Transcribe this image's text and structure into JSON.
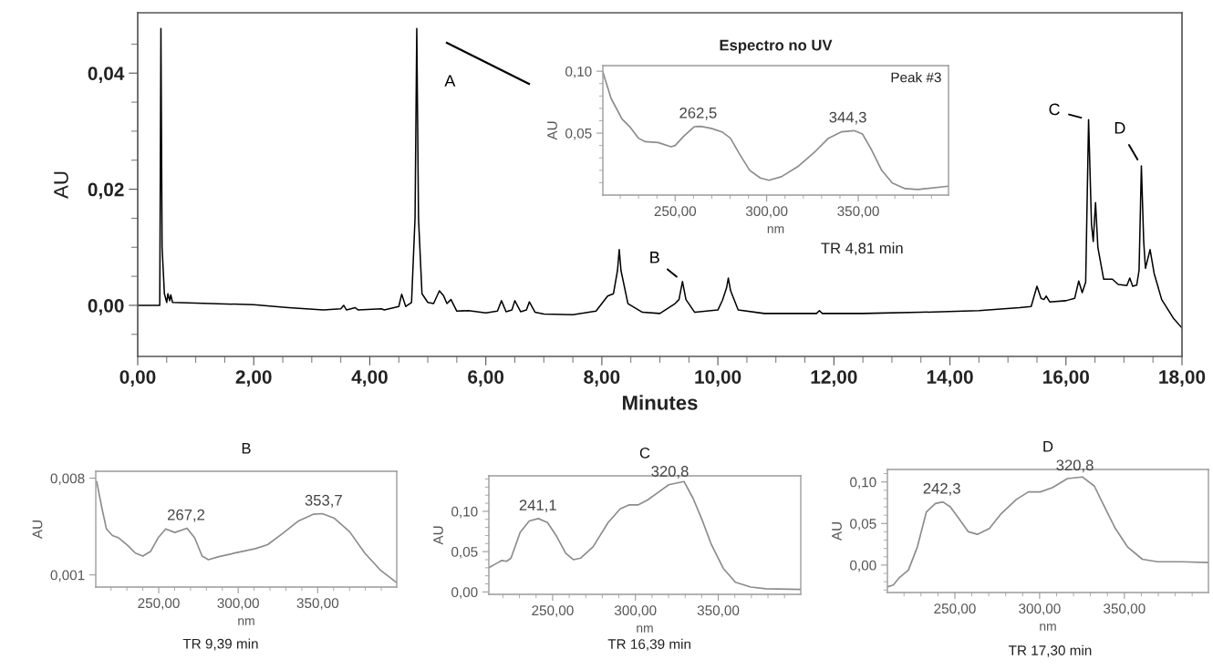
{
  "chart_data": [
    {
      "type": "line",
      "xlabel": "Minutes",
      "ylabel": "AU",
      "xlim": [
        0,
        18
      ],
      "ylim": [
        -0.0088,
        0.0504
      ],
      "xticks": [
        {
          "value": 0,
          "label": "0,00"
        },
        {
          "value": 0.5,
          "label": null
        },
        {
          "value": 1,
          "label": null
        },
        {
          "value": 1.5,
          "label": null
        },
        {
          "value": 2,
          "label": "2,00"
        },
        {
          "value": 2.5,
          "label": null
        },
        {
          "value": 3,
          "label": null
        },
        {
          "value": 3.5,
          "label": null
        },
        {
          "value": 4,
          "label": "4,00"
        },
        {
          "value": 4.5,
          "label": null
        },
        {
          "value": 5,
          "label": null
        },
        {
          "value": 5.5,
          "label": null
        },
        {
          "value": 6,
          "label": "6,00"
        },
        {
          "value": 6.5,
          "label": null
        },
        {
          "value": 7,
          "label": null
        },
        {
          "value": 7.5,
          "label": null
        },
        {
          "value": 8,
          "label": "8,00"
        },
        {
          "value": 8.5,
          "label": null
        },
        {
          "value": 9,
          "label": null
        },
        {
          "value": 9.5,
          "label": null
        },
        {
          "value": 10,
          "label": "10,00"
        },
        {
          "value": 10.5,
          "label": null
        },
        {
          "value": 11,
          "label": null
        },
        {
          "value": 11.5,
          "label": null
        },
        {
          "value": 12,
          "label": "12,00"
        },
        {
          "value": 12.5,
          "label": null
        },
        {
          "value": 13,
          "label": null
        },
        {
          "value": 13.5,
          "label": null
        },
        {
          "value": 14,
          "label": "14,00"
        },
        {
          "value": 14.5,
          "label": null
        },
        {
          "value": 15,
          "label": null
        },
        {
          "value": 15.5,
          "label": null
        },
        {
          "value": 16,
          "label": "16,00"
        },
        {
          "value": 16.5,
          "label": null
        },
        {
          "value": 17,
          "label": null
        },
        {
          "value": 17.5,
          "label": null
        },
        {
          "value": 18,
          "label": "18,00"
        }
      ],
      "yticks": [
        {
          "value": -0.005,
          "label": null
        },
        {
          "value": 0,
          "label": "0,00"
        },
        {
          "value": 0.005,
          "label": null
        },
        {
          "value": 0.01,
          "label": null
        },
        {
          "value": 0.015,
          "label": null
        },
        {
          "value": 0.02,
          "label": "0,02"
        },
        {
          "value": 0.025,
          "label": null
        },
        {
          "value": 0.03,
          "label": null
        },
        {
          "value": 0.035,
          "label": null
        },
        {
          "value": 0.04,
          "label": "0,04"
        },
        {
          "value": 0.045,
          "label": null
        }
      ],
      "series": [
        {
          "color": "#000000",
          "x": [
            0,
            0.38,
            0.4,
            0.42,
            0.46,
            0.5,
            0.52,
            0.55,
            0.57,
            0.6,
            1.0,
            2.0,
            2.6,
            3.2,
            3.5,
            3.55,
            3.6,
            3.75,
            3.8,
            4.2,
            4.25,
            4.5,
            4.55,
            4.62,
            4.72,
            4.78,
            4.81,
            4.84,
            4.9,
            5.0,
            5.1,
            5.2,
            5.27,
            5.33,
            5.4,
            5.5,
            5.7,
            6.0,
            6.2,
            6.27,
            6.35,
            6.45,
            6.5,
            6.6,
            6.7,
            6.75,
            6.85,
            7.0,
            7.5,
            7.9,
            8.1,
            8.2,
            8.27,
            8.3,
            8.33,
            8.45,
            8.7,
            9.0,
            9.25,
            9.33,
            9.39,
            9.45,
            9.6,
            10.0,
            10.08,
            10.15,
            10.18,
            10.22,
            10.35,
            10.8,
            11.7,
            11.75,
            11.8,
            12.5,
            13.5,
            14.5,
            15.2,
            15.4,
            15.5,
            15.57,
            15.62,
            15.66,
            15.72,
            16.0,
            16.15,
            16.22,
            16.28,
            16.34,
            16.39,
            16.44,
            16.47,
            16.51,
            16.55,
            16.65,
            16.8,
            16.9,
            17.05,
            17.1,
            17.15,
            17.22,
            17.26,
            17.3,
            17.34,
            17.37,
            17.45,
            17.52,
            17.65,
            17.85,
            18.0
          ],
          "values": [
            0.0,
            0.0,
            0.0477,
            0.01,
            0.002,
            0.0005,
            0.002,
            0.0008,
            0.0018,
            0.0005,
            0.0004,
            0.0001,
            -0.0004,
            -0.0008,
            -0.0006,
            0.0,
            -0.0008,
            -0.0004,
            -0.0008,
            -0.0006,
            -0.0008,
            -0.0002,
            0.0019,
            -0.0002,
            0.0005,
            0.015,
            0.0477,
            0.015,
            0.002,
            0.0005,
            0.0003,
            0.0025,
            0.0017,
            0.0003,
            0.001,
            -0.001,
            -0.0009,
            -0.0013,
            -0.001,
            0.0008,
            -0.0011,
            -0.0008,
            0.0008,
            -0.0011,
            -0.0008,
            0.0006,
            -0.0012,
            -0.0015,
            -0.0016,
            -0.001,
            0.0016,
            0.002,
            0.006,
            0.0096,
            0.006,
            0.0003,
            -0.0012,
            -0.0014,
            0.0002,
            0.001,
            0.0041,
            0.001,
            -0.0012,
            -0.0008,
            0.0009,
            0.003,
            0.0047,
            0.0025,
            -0.0008,
            -0.0014,
            -0.0014,
            -0.0009,
            -0.0014,
            -0.0014,
            -0.0012,
            -0.0009,
            -0.0004,
            -0.0002,
            0.0033,
            0.0012,
            0.001,
            0.0016,
            0.0006,
            0.0008,
            0.0012,
            0.0042,
            0.0022,
            0.004,
            0.032,
            0.014,
            0.011,
            0.0177,
            0.01,
            0.0045,
            0.0045,
            0.0036,
            0.0034,
            0.0047,
            0.0033,
            0.0035,
            0.006,
            0.024,
            0.011,
            0.0064,
            0.0096,
            0.0055,
            0.001,
            -0.0022,
            -0.0039
          ]
        }
      ],
      "annotations": [
        "A",
        {
          "text": "B",
          "x": 9.39,
          "y": 0.0041
        },
        {
          "text": "C",
          "x": 16.39,
          "y": 0.032
        },
        {
          "text": "D",
          "x": 17.3,
          "y": 0.024
        }
      ]
    },
    {
      "type": "line",
      "title": "Espectro no UV",
      "xlabel": "nm",
      "ylabel": "AU",
      "xlim": [
        210.5,
        399.3
      ],
      "ylim": [
        0,
        0.1045
      ],
      "xticks": [
        {
          "value": 220,
          "label": null
        },
        {
          "value": 230,
          "label": null
        },
        {
          "value": 240,
          "label": null
        },
        {
          "value": 250,
          "label": "250,00"
        },
        {
          "value": 260,
          "label": null
        },
        {
          "value": 270,
          "label": null
        },
        {
          "value": 280,
          "label": null
        },
        {
          "value": 290,
          "label": null
        },
        {
          "value": 300,
          "label": "300,00"
        },
        {
          "value": 310,
          "label": null
        },
        {
          "value": 320,
          "label": null
        },
        {
          "value": 330,
          "label": null
        },
        {
          "value": 340,
          "label": null
        },
        {
          "value": 350,
          "label": "350,00"
        },
        {
          "value": 360,
          "label": null
        },
        {
          "value": 370,
          "label": null
        },
        {
          "value": 380,
          "label": null
        },
        {
          "value": 390,
          "label": null
        }
      ],
      "yticks": [
        {
          "value": 0.01,
          "label": null
        },
        {
          "value": 0.02,
          "label": null
        },
        {
          "value": 0.03,
          "label": null
        },
        {
          "value": 0.04,
          "label": null
        },
        {
          "value": 0.05,
          "label": "0,05"
        },
        {
          "value": 0.06,
          "label": null
        },
        {
          "value": 0.07,
          "label": null
        },
        {
          "value": 0.08,
          "label": null
        },
        {
          "value": 0.09,
          "label": null
        },
        {
          "value": 0.1,
          "label": "0,10"
        }
      ],
      "series": [
        {
          "color": "#8c8c8c",
          "x": [
            210.5,
            215,
            221,
            225.6,
            230,
            233.7,
            240.7,
            247.7,
            250,
            254.7,
            260.5,
            264,
            269.8,
            275.6,
            280.2,
            284.9,
            290.7,
            296.5,
            301.2,
            308,
            317.4,
            326.7,
            333.7,
            340.7,
            347.7,
            352.3,
            357,
            362.8,
            368.6,
            375.6,
            382.6,
            399.3
          ],
          "values": [
            0.0993,
            0.078,
            0.0614,
            0.0545,
            0.0459,
            0.0431,
            0.0424,
            0.039,
            0.04,
            0.0476,
            0.0552,
            0.0555,
            0.0538,
            0.051,
            0.0459,
            0.0338,
            0.02,
            0.0138,
            0.012,
            0.0148,
            0.0234,
            0.0355,
            0.0459,
            0.051,
            0.052,
            0.0493,
            0.0372,
            0.02,
            0.0097,
            0.0052,
            0.0045,
            0.0072
          ]
        }
      ],
      "annotations": [
        {
          "text": "262,5",
          "x": 262.5,
          "y": 0.0555
        },
        {
          "text": "344,3",
          "x": 344.3,
          "y": 0.052
        },
        "Peak #3",
        "TR 4,81 min"
      ]
    },
    {
      "type": "line",
      "title": "B",
      "xlabel": "nm",
      "ylabel": "AU",
      "xlim": [
        210.4,
        399.7
      ],
      "ylim": [
        0.00012,
        0.0085
      ],
      "xticks": [
        {
          "value": 220,
          "label": null
        },
        {
          "value": 230,
          "label": null
        },
        {
          "value": 240,
          "label": null
        },
        {
          "value": 250,
          "label": "250,00"
        },
        {
          "value": 260,
          "label": null
        },
        {
          "value": 270,
          "label": null
        },
        {
          "value": 280,
          "label": null
        },
        {
          "value": 290,
          "label": null
        },
        {
          "value": 300,
          "label": "300,00"
        },
        {
          "value": 310,
          "label": null
        },
        {
          "value": 320,
          "label": null
        },
        {
          "value": 330,
          "label": null
        },
        {
          "value": 340,
          "label": null
        },
        {
          "value": 350,
          "label": "350,00"
        },
        {
          "value": 360,
          "label": null
        },
        {
          "value": 370,
          "label": null
        },
        {
          "value": 380,
          "label": null
        },
        {
          "value": 390,
          "label": null
        }
      ],
      "yticks": [
        {
          "value": 0.001,
          "label": "0,001"
        },
        {
          "value": 0.008,
          "label": "0,008"
        }
      ],
      "series": [
        {
          "color": "#8c8c8c",
          "x": [
            211,
            214.2,
            217.1,
            220.9,
            224.8,
            230.5,
            235.3,
            240,
            244.8,
            249.6,
            254.4,
            260.1,
            267.8,
            272.6,
            277.3,
            281.2,
            287.9,
            299.3,
            310.8,
            318.5,
            328,
            337.6,
            347.1,
            352.9,
            360.5,
            370.1,
            379.6,
            389.2,
            399.7
          ],
          "values": [
            0.00774,
            0.00587,
            0.00433,
            0.00385,
            0.00368,
            0.00313,
            0.00258,
            0.00236,
            0.00269,
            0.00368,
            0.00433,
            0.00407,
            0.00438,
            0.00368,
            0.00236,
            0.0021,
            0.00232,
            0.00262,
            0.0029,
            0.00319,
            0.004,
            0.00488,
            0.00539,
            0.00543,
            0.0051,
            0.00412,
            0.00258,
            0.00137,
            0.00043
          ]
        }
      ],
      "annotations": [
        {
          "text": "267,2",
          "x": 267.2,
          "y": 0.00438
        },
        {
          "text": "353,7",
          "x": 353.7,
          "y": 0.00543
        },
        "TR 9,39 min"
      ]
    },
    {
      "type": "line",
      "title": "C",
      "xlabel": "nm",
      "ylabel": "AU",
      "xlim": [
        211.5,
        399.8
      ],
      "ylim": [
        -0.003,
        0.144
      ],
      "xticks": [
        {
          "value": 220,
          "label": null
        },
        {
          "value": 230,
          "label": null
        },
        {
          "value": 240,
          "label": null
        },
        {
          "value": 250,
          "label": "250,00"
        },
        {
          "value": 260,
          "label": null
        },
        {
          "value": 270,
          "label": null
        },
        {
          "value": 280,
          "label": null
        },
        {
          "value": 290,
          "label": null
        },
        {
          "value": 300,
          "label": "300,00"
        },
        {
          "value": 310,
          "label": null
        },
        {
          "value": 320,
          "label": null
        },
        {
          "value": 330,
          "label": null
        },
        {
          "value": 340,
          "label": null
        },
        {
          "value": 350,
          "label": "350,00"
        },
        {
          "value": 360,
          "label": null
        },
        {
          "value": 370,
          "label": null
        },
        {
          "value": 380,
          "label": null
        },
        {
          "value": 390,
          "label": null
        }
      ],
      "yticks": [
        {
          "value": 0,
          "label": "0,00"
        },
        {
          "value": 0.01,
          "label": null
        },
        {
          "value": 0.02,
          "label": null
        },
        {
          "value": 0.03,
          "label": null
        },
        {
          "value": 0.04,
          "label": null
        },
        {
          "value": 0.05,
          "label": "0,05"
        },
        {
          "value": 0.06,
          "label": null
        },
        {
          "value": 0.07,
          "label": null
        },
        {
          "value": 0.08,
          "label": null
        },
        {
          "value": 0.09,
          "label": null
        },
        {
          "value": 0.1,
          "label": "0,10"
        },
        {
          "value": 0.11,
          "label": null
        },
        {
          "value": 0.12,
          "label": null
        },
        {
          "value": 0.13,
          "label": null
        },
        {
          "value": 0.14,
          "label": null
        }
      ],
      "series": [
        {
          "color": "#8c8c8c",
          "x": [
            211.5,
            215.8,
            219.4,
            222.2,
            224.9,
            230.4,
            235.9,
            241.4,
            246.9,
            252.4,
            257.9,
            262.5,
            267,
            274.4,
            283.5,
            290.8,
            296.3,
            301.8,
            307.3,
            314.7,
            320.1,
            329.3,
            334.8,
            340.3,
            345.8,
            353.1,
            360.4,
            369.6,
            378.8,
            399.8
          ],
          "values": [
            0.03,
            0.035,
            0.039,
            0.038,
            0.042,
            0.074,
            0.088,
            0.091,
            0.086,
            0.069,
            0.048,
            0.04,
            0.042,
            0.056,
            0.086,
            0.103,
            0.108,
            0.108,
            0.114,
            0.125,
            0.133,
            0.137,
            0.116,
            0.089,
            0.059,
            0.029,
            0.012,
            0.006,
            0.004,
            0.003
          ]
        }
      ],
      "annotations": [
        {
          "text": "241,1",
          "x": 241.1,
          "y": 0.091
        },
        {
          "text": "320,8",
          "x": 320.8,
          "y": 0.133
        },
        "TR 16,39 min"
      ]
    },
    {
      "type": "line",
      "title": "D",
      "xlabel": "nm",
      "ylabel": "AU",
      "xlim": [
        210.2,
        399.6
      ],
      "ylim": [
        -0.033,
        0.115
      ],
      "xticks": [
        {
          "value": 220,
          "label": null
        },
        {
          "value": 230,
          "label": null
        },
        {
          "value": 240,
          "label": null
        },
        {
          "value": 250,
          "label": "250,00"
        },
        {
          "value": 260,
          "label": null
        },
        {
          "value": 270,
          "label": null
        },
        {
          "value": 280,
          "label": null
        },
        {
          "value": 290,
          "label": null
        },
        {
          "value": 300,
          "label": "300,00"
        },
        {
          "value": 310,
          "label": null
        },
        {
          "value": 320,
          "label": null
        },
        {
          "value": 330,
          "label": null
        },
        {
          "value": 340,
          "label": null
        },
        {
          "value": 350,
          "label": "350,00"
        },
        {
          "value": 360,
          "label": null
        },
        {
          "value": 370,
          "label": null
        },
        {
          "value": 380,
          "label": null
        },
        {
          "value": 390,
          "label": null
        }
      ],
      "yticks": [
        {
          "value": -0.03,
          "label": null
        },
        {
          "value": -0.02,
          "label": null
        },
        {
          "value": -0.01,
          "label": null
        },
        {
          "value": 0,
          "label": "0,00"
        },
        {
          "value": 0.01,
          "label": null
        },
        {
          "value": 0.02,
          "label": null
        },
        {
          "value": 0.03,
          "label": null
        },
        {
          "value": 0.04,
          "label": null
        },
        {
          "value": 0.05,
          "label": "0,05"
        },
        {
          "value": 0.06,
          "label": null
        },
        {
          "value": 0.07,
          "label": null
        },
        {
          "value": 0.08,
          "label": null
        },
        {
          "value": 0.09,
          "label": null
        },
        {
          "value": 0.1,
          "label": "0,10"
        },
        {
          "value": 0.11,
          "label": null
        }
      ],
      "series": [
        {
          "color": "#8c8c8c",
          "x": [
            210.5,
            213.7,
            217.3,
            222.6,
            227.9,
            233.2,
            238.5,
            242.9,
            247.3,
            252.7,
            258,
            263.3,
            270.4,
            277.4,
            286.3,
            293.4,
            300.4,
            307.5,
            316.4,
            325.2,
            332.3,
            337.6,
            344.7,
            351.8,
            360.6,
            369.5,
            383.6,
            399.6
          ],
          "values": [
            -0.026,
            -0.024,
            -0.015,
            -0.006,
            0.022,
            0.064,
            0.074,
            0.076,
            0.07,
            0.055,
            0.04,
            0.037,
            0.044,
            0.062,
            0.079,
            0.088,
            0.088,
            0.093,
            0.104,
            0.106,
            0.095,
            0.073,
            0.044,
            0.022,
            0.007,
            0.004,
            0.004,
            0.003
          ]
        }
      ],
      "annotations": [
        {
          "text": "242,3",
          "x": 242.3,
          "y": 0.076
        },
        {
          "text": "320,8",
          "x": 320.8,
          "y": 0.104
        },
        "TR 17,30 min"
      ]
    }
  ]
}
